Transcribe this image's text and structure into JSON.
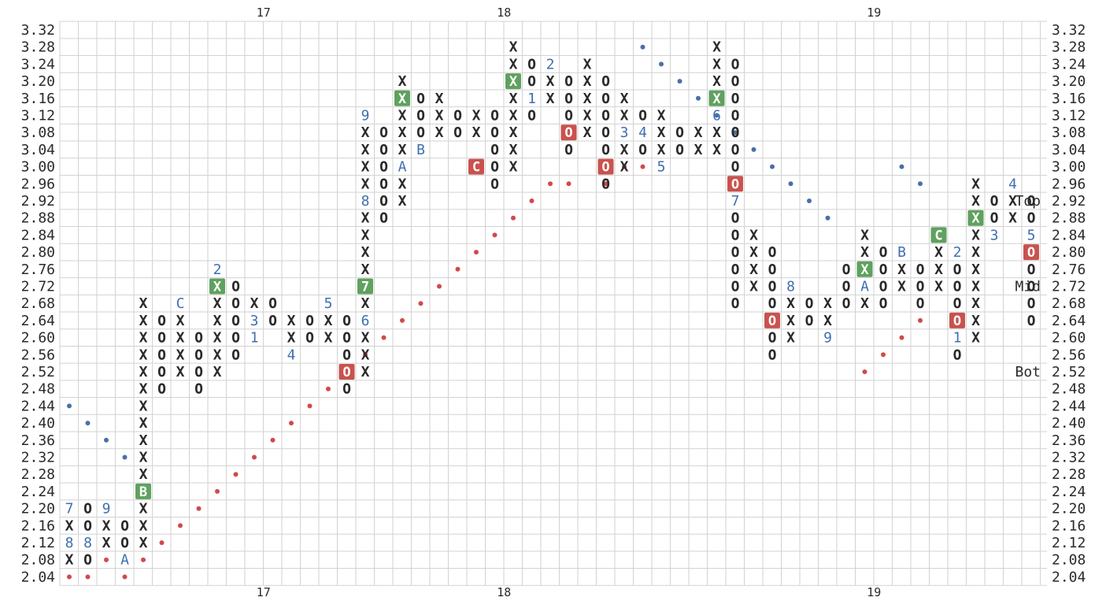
{
  "chart_data": {
    "type": "point-and-figure",
    "box_size": 0.04,
    "price_levels": [
      "3.32",
      "3.28",
      "3.24",
      "3.20",
      "3.16",
      "3.12",
      "3.08",
      "3.04",
      "3.00",
      "2.96",
      "2.92",
      "2.88",
      "2.84",
      "2.80",
      "2.76",
      "2.72",
      "2.68",
      "2.64",
      "2.60",
      "2.56",
      "2.52",
      "2.48",
      "2.44",
      "2.40",
      "2.36",
      "2.32",
      "2.28",
      "2.24",
      "2.20",
      "2.16",
      "2.12",
      "2.08",
      "2.04"
    ],
    "year_labels": [
      {
        "label": "17",
        "column": 10.5
      },
      {
        "label": "18",
        "column": 23.5
      },
      {
        "label": "19",
        "column": 43.5
      }
    ],
    "band_labels": [
      {
        "label": "Top",
        "price": 2.92
      },
      {
        "label": "Mid",
        "price": 2.72
      },
      {
        "label": "Bot",
        "price": 2.52
      }
    ],
    "colors": {
      "grid": "#d2d2d2",
      "text": "#2a2a2a",
      "month": "#3f6fb0",
      "buy_box": "#5fa15f",
      "sell_box": "#c9524e",
      "support_dot": "#d04a4a",
      "resistance_dot": "#4a6fa8"
    },
    "columns": [
      {
        "t": "X",
        "b": 2.08,
        "h": 2.2,
        "m": {
          "2.12": "8",
          "2.20": "7"
        }
      },
      {
        "t": "O",
        "b": 2.08,
        "h": 2.2,
        "m": {
          "2.12": "8"
        }
      },
      {
        "t": "X",
        "b": 2.12,
        "h": 2.2,
        "m": {
          "2.20": "9"
        }
      },
      {
        "t": "O",
        "b": 2.08,
        "h": 2.16,
        "m": {
          "2.08": "A"
        }
      },
      {
        "t": "X",
        "b": 2.12,
        "h": 2.68,
        "m": {
          "2.24": "B"
        },
        "bx": {
          "2.24": "buy"
        }
      },
      {
        "t": "O",
        "b": 2.48,
        "h": 2.64
      },
      {
        "t": "X",
        "b": 2.52,
        "h": 2.64,
        "m": {
          "2.68": "C"
        }
      },
      {
        "t": "O",
        "b": 2.48,
        "h": 2.6
      },
      {
        "t": "X",
        "b": 2.52,
        "h": 2.72,
        "m": {
          "2.72": "X",
          "2.76": "2"
        },
        "bx": {
          "2.72": "buy"
        }
      },
      {
        "t": "O",
        "b": 2.56,
        "h": 2.72
      },
      {
        "t": "X",
        "b": 2.6,
        "h": 2.68,
        "m": {
          "2.64": "3",
          "2.60": "1"
        }
      },
      {
        "t": "O",
        "b": 2.64,
        "h": 2.68
      },
      {
        "t": "X",
        "b": 2.56,
        "h": 2.64,
        "m": {
          "2.56": "4"
        }
      },
      {
        "t": "O",
        "b": 2.6,
        "h": 2.64
      },
      {
        "t": "X",
        "b": 2.6,
        "h": 2.64,
        "m": {
          "2.68": "5"
        }
      },
      {
        "t": "O",
        "b": 2.48,
        "h": 2.64,
        "m": {
          "2.52": "O"
        },
        "bx": {
          "2.52": "sell"
        }
      },
      {
        "t": "X",
        "b": 2.52,
        "h": 3.08,
        "m": {
          "2.64": "6",
          "2.72": "7",
          "2.92": "8",
          "3.12": "9"
        },
        "bx": {
          "2.72": "buy"
        }
      },
      {
        "t": "O",
        "b": 2.88,
        "h": 3.08
      },
      {
        "t": "X",
        "b": 2.92,
        "h": 3.2,
        "m": {
          "3.00": "A"
        },
        "bx": {
          "3.16": "buy"
        }
      },
      {
        "t": "O",
        "b": 3.08,
        "h": 3.16,
        "m": {
          "3.04": "B"
        }
      },
      {
        "t": "X",
        "b": 3.08,
        "h": 3.16
      },
      {
        "t": "O",
        "b": 3.08,
        "h": 3.12
      },
      {
        "t": "X",
        "b": 3.08,
        "h": 3.12,
        "m": {
          "3.00": "C"
        },
        "bx": {
          "3.00": "sell"
        }
      },
      {
        "t": "O",
        "b": 2.96,
        "h": 3.12
      },
      {
        "t": "X",
        "b": 3.0,
        "h": 3.28,
        "bx": {
          "3.20": "buy"
        }
      },
      {
        "t": "O",
        "b": 3.12,
        "h": 3.24,
        "m": {
          "3.16": "1"
        }
      },
      {
        "t": "X",
        "b": 3.16,
        "h": 3.2,
        "m": {
          "3.24": "2"
        }
      },
      {
        "t": "O",
        "b": 3.04,
        "h": 3.2,
        "m": {
          "3.08": "O"
        },
        "bx": {
          "3.08": "sell"
        }
      },
      {
        "t": "X",
        "b": 3.08,
        "h": 3.24
      },
      {
        "t": "O",
        "b": 2.96,
        "h": 3.2,
        "m": {
          "3.00": "O"
        },
        "bx": {
          "3.00": "sell"
        }
      },
      {
        "t": "X",
        "b": 3.0,
        "h": 3.16,
        "m": {
          "3.08": "3"
        }
      },
      {
        "t": "O",
        "b": 3.04,
        "h": 3.12,
        "m": {
          "3.08": "4"
        }
      },
      {
        "t": "X",
        "b": 3.04,
        "h": 3.12,
        "m": {
          "3.00": "5"
        }
      },
      {
        "t": "O",
        "b": 3.04,
        "h": 3.08
      },
      {
        "t": "X",
        "b": 3.04,
        "h": 3.08
      },
      {
        "t": "X",
        "b": 3.04,
        "h": 3.28,
        "m": {
          "3.12": "6"
        },
        "bx": {
          "3.16": "buy"
        }
      },
      {
        "t": "O",
        "b": 2.68,
        "h": 3.24,
        "m": {
          "2.96": "O",
          "2.92": "7"
        },
        "bx": {
          "2.96": "sell"
        }
      },
      {
        "t": "X",
        "b": 2.72,
        "h": 2.84
      },
      {
        "t": "O",
        "b": 2.56,
        "h": 2.8,
        "m": {
          "2.64": "O"
        },
        "bx": {
          "2.64": "sell"
        }
      },
      {
        "t": "X",
        "b": 2.6,
        "h": 2.72,
        "m": {
          "2.72": "8"
        }
      },
      {
        "t": "O",
        "b": 2.64,
        "h": 2.68
      },
      {
        "t": "X",
        "b": 2.6,
        "h": 2.68,
        "m": {
          "2.60": "9"
        }
      },
      {
        "t": "O",
        "b": 2.68,
        "h": 2.76
      },
      {
        "t": "X",
        "b": 2.68,
        "h": 2.84,
        "m": {
          "2.72": "A"
        },
        "bx": {
          "2.76": "buy"
        }
      },
      {
        "t": "O",
        "b": 2.68,
        "h": 2.8
      },
      {
        "t": "X",
        "b": 2.72,
        "h": 2.8,
        "m": {
          "2.80": "B"
        }
      },
      {
        "t": "O",
        "b": 2.68,
        "h": 2.76
      },
      {
        "t": "X",
        "b": 2.72,
        "h": 2.84,
        "m": {
          "2.84": "C"
        },
        "bx": {
          "2.84": "buy"
        }
      },
      {
        "t": "O",
        "b": 2.56,
        "h": 2.8,
        "m": {
          "2.64": "O",
          "2.60": "1",
          "2.80": "2"
        },
        "bx": {
          "2.64": "sell"
        }
      },
      {
        "t": "X",
        "b": 2.6,
        "h": 2.96,
        "bx": {
          "2.88": "buy"
        }
      },
      {
        "t": "O",
        "b": 2.88,
        "h": 2.92,
        "m": {
          "2.84": "3"
        }
      },
      {
        "t": "X",
        "b": 2.88,
        "h": 2.92,
        "m": {
          "2.96": "4"
        }
      },
      {
        "t": "O",
        "b": 2.64,
        "h": 2.92,
        "m": {
          "2.84": "5",
          "2.80": "O"
        },
        "bx": {
          "2.80": "sell"
        }
      }
    ],
    "support_line": [
      {
        "column": 0,
        "price": 2.04
      },
      {
        "column": 1,
        "price": 2.04
      },
      {
        "column": 2,
        "price": 2.08
      },
      {
        "column": 3,
        "price": 2.04
      },
      {
        "column": 4,
        "price": 2.08
      },
      {
        "column": 5,
        "price": 2.12
      },
      {
        "column": 6,
        "price": 2.16
      },
      {
        "column": 7,
        "price": 2.2
      },
      {
        "column": 8,
        "price": 2.24
      },
      {
        "column": 9,
        "price": 2.28
      },
      {
        "column": 10,
        "price": 2.32
      },
      {
        "column": 11,
        "price": 2.36
      },
      {
        "column": 12,
        "price": 2.4
      },
      {
        "column": 13,
        "price": 2.44
      },
      {
        "column": 14,
        "price": 2.48
      },
      {
        "column": 15,
        "price": 2.52
      },
      {
        "column": 16,
        "price": 2.56
      },
      {
        "column": 17,
        "price": 2.6
      },
      {
        "column": 18,
        "price": 2.64
      },
      {
        "column": 19,
        "price": 2.68
      },
      {
        "column": 20,
        "price": 2.72
      },
      {
        "column": 21,
        "price": 2.76
      },
      {
        "column": 22,
        "price": 2.8
      },
      {
        "column": 23,
        "price": 2.84
      },
      {
        "column": 24,
        "price": 2.88
      },
      {
        "column": 25,
        "price": 2.92
      },
      {
        "column": 26,
        "price": 2.96
      },
      {
        "column": 27,
        "price": 2.96
      },
      {
        "column": 29,
        "price": 2.96
      },
      {
        "column": 30,
        "price": 3.0
      },
      {
        "column": 31,
        "price": 3.0
      },
      {
        "column": 43,
        "price": 2.52
      },
      {
        "column": 44,
        "price": 2.56
      },
      {
        "column": 45,
        "price": 2.6
      },
      {
        "column": 46,
        "price": 2.64
      }
    ],
    "resistance_line": [
      {
        "column": 0,
        "price": 2.44
      },
      {
        "column": 1,
        "price": 2.4
      },
      {
        "column": 2,
        "price": 2.36
      },
      {
        "column": 3,
        "price": 2.32
      },
      {
        "column": 31,
        "price": 3.28
      },
      {
        "column": 32,
        "price": 3.24
      },
      {
        "column": 33,
        "price": 3.2
      },
      {
        "column": 34,
        "price": 3.16
      },
      {
        "column": 35,
        "price": 3.12
      },
      {
        "column": 36,
        "price": 3.08
      },
      {
        "column": 37,
        "price": 3.04
      },
      {
        "column": 38,
        "price": 3.0
      },
      {
        "column": 39,
        "price": 2.96
      },
      {
        "column": 40,
        "price": 2.92
      },
      {
        "column": 41,
        "price": 2.88
      },
      {
        "column": 45,
        "price": 3.0
      },
      {
        "column": 46,
        "price": 2.96
      }
    ]
  }
}
